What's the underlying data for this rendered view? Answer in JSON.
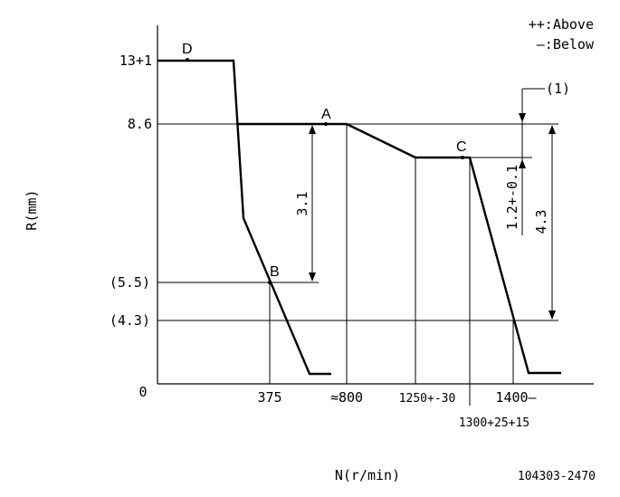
{
  "axis": {
    "x_label": "N(r/min)",
    "y_label": "R(mm)",
    "origin": "0"
  },
  "y_ticks": [
    "13+1",
    "8.6",
    "(5.5)",
    "(4.3)"
  ],
  "x_ticks": [
    "375",
    "≈800",
    "1250+-30",
    "1400—",
    "1300+25+15"
  ],
  "points": [
    "A",
    "B",
    "C",
    "D"
  ],
  "dimensions": {
    "d1": "3.1",
    "d2": "1.2+-0.1",
    "d3": "4.3",
    "callout": "(1)"
  },
  "legend": {
    "above": "++:Above",
    "below": "—:Below"
  },
  "code": "104303-2470"
}
